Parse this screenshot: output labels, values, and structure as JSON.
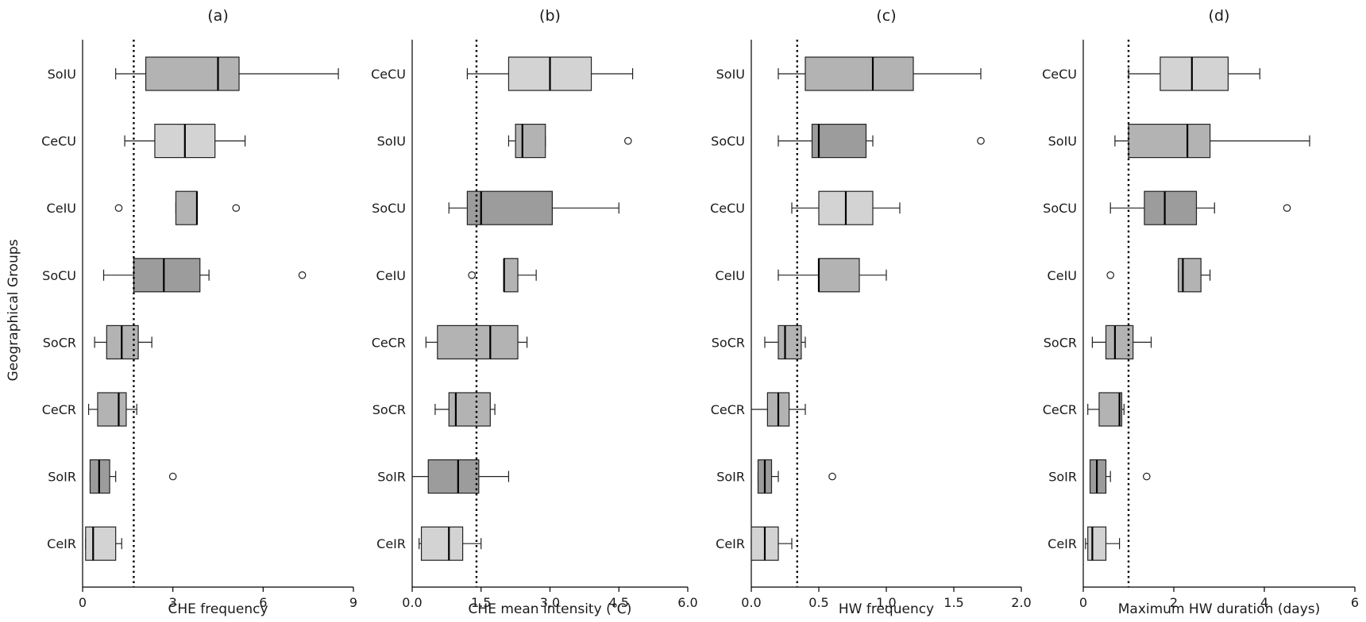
{
  "figure": {
    "ylabel": "Geographical Groups",
    "colors": {
      "light": "#d3d3d3",
      "medium": "#b3b3b3",
      "dark": "#9c9c9c",
      "line": "#222222"
    }
  },
  "chart_data": [
    {
      "type": "boxplot",
      "title": "(a)",
      "xlabel": "CHE frequency",
      "xlim": [
        0,
        9
      ],
      "xticks": [
        0,
        3,
        6,
        9
      ],
      "xtick_labels": [
        "0",
        "3",
        "6",
        "9"
      ],
      "reference_line": 1.7,
      "categories": [
        "SoIU",
        "CeCU",
        "CeIU",
        "SoCU",
        "SoCR",
        "CeCR",
        "SoIR",
        "CeIR"
      ],
      "boxes": [
        {
          "group": "SoIU",
          "whislo": 1.1,
          "q1": 2.1,
          "med": 4.5,
          "q3": 5.2,
          "whishi": 8.5,
          "fliers": [],
          "shade": "medium"
        },
        {
          "group": "CeCU",
          "whislo": 1.4,
          "q1": 2.4,
          "med": 3.4,
          "q3": 4.4,
          "whishi": 5.4,
          "fliers": [],
          "shade": "light"
        },
        {
          "group": "CeIU",
          "whislo": 3.1,
          "q1": 3.1,
          "med": 3.8,
          "q3": 3.8,
          "whishi": 3.8,
          "fliers": [
            1.2,
            5.1
          ],
          "shade": "medium"
        },
        {
          "group": "SoCU",
          "whislo": 0.7,
          "q1": 1.7,
          "med": 2.7,
          "q3": 3.9,
          "whishi": 4.2,
          "fliers": [
            7.3
          ],
          "shade": "dark"
        },
        {
          "group": "SoCR",
          "whislo": 0.4,
          "q1": 0.8,
          "med": 1.3,
          "q3": 1.85,
          "whishi": 2.3,
          "fliers": [],
          "shade": "medium"
        },
        {
          "group": "CeCR",
          "whislo": 0.2,
          "q1": 0.5,
          "med": 1.2,
          "q3": 1.45,
          "whishi": 1.8,
          "fliers": [],
          "shade": "medium"
        },
        {
          "group": "SoIR",
          "whislo": 0.25,
          "q1": 0.25,
          "med": 0.55,
          "q3": 0.9,
          "whishi": 1.1,
          "fliers": [
            3.0
          ],
          "shade": "dark"
        },
        {
          "group": "CeIR",
          "whislo": 0.1,
          "q1": 0.1,
          "med": 0.35,
          "q3": 1.1,
          "whishi": 1.3,
          "fliers": [],
          "shade": "light"
        }
      ]
    },
    {
      "type": "boxplot",
      "title": "(b)",
      "xlabel": "CHE mean intensity (℃)",
      "xlim": [
        0,
        6
      ],
      "xticks": [
        0,
        1.5,
        3,
        4.5,
        6
      ],
      "xtick_labels": [
        "0.0",
        "1.5",
        "3.0",
        "4.5",
        "6.0"
      ],
      "reference_line": 1.4,
      "categories": [
        "CeCU",
        "SoIU",
        "SoCU",
        "CeIU",
        "CeCR",
        "SoCR",
        "SoIR",
        "CeIR"
      ],
      "boxes": [
        {
          "group": "CeCU",
          "whislo": 1.2,
          "q1": 2.1,
          "med": 3.0,
          "q3": 3.9,
          "whishi": 4.8,
          "fliers": [],
          "shade": "light"
        },
        {
          "group": "SoIU",
          "whislo": 2.1,
          "q1": 2.25,
          "med": 2.4,
          "q3": 2.9,
          "whishi": 2.9,
          "fliers": [
            4.7
          ],
          "shade": "medium"
        },
        {
          "group": "SoCU",
          "whislo": 0.8,
          "q1": 1.2,
          "med": 1.5,
          "q3": 3.05,
          "whishi": 4.5,
          "fliers": [],
          "shade": "dark"
        },
        {
          "group": "CeIU",
          "whislo": 2.0,
          "q1": 2.0,
          "med": 2.0,
          "q3": 2.3,
          "whishi": 2.7,
          "fliers": [
            1.3
          ],
          "shade": "medium"
        },
        {
          "group": "CeCR",
          "whislo": 0.3,
          "q1": 0.55,
          "med": 1.7,
          "q3": 2.3,
          "whishi": 2.5,
          "fliers": [],
          "shade": "medium"
        },
        {
          "group": "SoCR",
          "whislo": 0.5,
          "q1": 0.8,
          "med": 0.95,
          "q3": 1.7,
          "whishi": 1.8,
          "fliers": [],
          "shade": "medium"
        },
        {
          "group": "SoIR",
          "whislo": 0.0,
          "q1": 0.35,
          "med": 1.0,
          "q3": 1.45,
          "whishi": 2.1,
          "fliers": [],
          "shade": "dark"
        },
        {
          "group": "CeIR",
          "whislo": 0.15,
          "q1": 0.2,
          "med": 0.8,
          "q3": 1.1,
          "whishi": 1.5,
          "fliers": [],
          "shade": "light"
        }
      ]
    },
    {
      "type": "boxplot",
      "title": "(c)",
      "xlabel": "HW frequency",
      "xlim": [
        0,
        2
      ],
      "xticks": [
        0,
        0.5,
        1,
        1.5,
        2
      ],
      "xtick_labels": [
        "0.0",
        "0.5",
        "1.0",
        "1.5",
        "2.0"
      ],
      "reference_line": 0.34,
      "categories": [
        "SoIU",
        "SoCU",
        "CeCU",
        "CeIU",
        "SoCR",
        "CeCR",
        "SoIR",
        "CeIR"
      ],
      "boxes": [
        {
          "group": "SoIU",
          "whislo": 0.2,
          "q1": 0.4,
          "med": 0.9,
          "q3": 1.2,
          "whishi": 1.7,
          "fliers": [],
          "shade": "medium"
        },
        {
          "group": "SoCU",
          "whislo": 0.2,
          "q1": 0.45,
          "med": 0.5,
          "q3": 0.85,
          "whishi": 0.9,
          "fliers": [
            1.7
          ],
          "shade": "dark"
        },
        {
          "group": "CeCU",
          "whislo": 0.3,
          "q1": 0.5,
          "med": 0.7,
          "q3": 0.9,
          "whishi": 1.1,
          "fliers": [],
          "shade": "light"
        },
        {
          "group": "CeIU",
          "whislo": 0.2,
          "q1": 0.5,
          "med": 0.5,
          "q3": 0.8,
          "whishi": 1.0,
          "fliers": [],
          "shade": "medium"
        },
        {
          "group": "SoCR",
          "whislo": 0.1,
          "q1": 0.2,
          "med": 0.25,
          "q3": 0.37,
          "whishi": 0.4,
          "fliers": [],
          "shade": "medium"
        },
        {
          "group": "CeCR",
          "whislo": 0.0,
          "q1": 0.12,
          "med": 0.2,
          "q3": 0.28,
          "whishi": 0.4,
          "fliers": [],
          "shade": "medium"
        },
        {
          "group": "SoIR",
          "whislo": 0.05,
          "q1": 0.05,
          "med": 0.1,
          "q3": 0.15,
          "whishi": 0.2,
          "fliers": [
            0.6
          ],
          "shade": "dark"
        },
        {
          "group": "CeIR",
          "whislo": 0.0,
          "q1": 0.0,
          "med": 0.1,
          "q3": 0.2,
          "whishi": 0.3,
          "fliers": [],
          "shade": "light"
        }
      ]
    },
    {
      "type": "boxplot",
      "title": "(d)",
      "xlabel": "Maximum HW duration (days)",
      "xlim": [
        0,
        6
      ],
      "xticks": [
        0,
        2,
        4,
        6
      ],
      "xtick_labels": [
        "0",
        "2",
        "4",
        "6"
      ],
      "reference_line": 1.0,
      "categories": [
        "CeCU",
        "SoIU",
        "SoCU",
        "CeIU",
        "SoCR",
        "CeCR",
        "SoIR",
        "CeIR"
      ],
      "boxes": [
        {
          "group": "CeCU",
          "whislo": 1.0,
          "q1": 1.7,
          "med": 2.4,
          "q3": 3.2,
          "whishi": 3.9,
          "fliers": [],
          "shade": "light"
        },
        {
          "group": "SoIU",
          "whislo": 0.7,
          "q1": 1.0,
          "med": 2.3,
          "q3": 2.8,
          "whishi": 5.0,
          "fliers": [],
          "shade": "medium"
        },
        {
          "group": "SoCU",
          "whislo": 0.6,
          "q1": 1.35,
          "med": 1.8,
          "q3": 2.5,
          "whishi": 2.9,
          "fliers": [
            4.5
          ],
          "shade": "dark"
        },
        {
          "group": "CeIU",
          "whislo": 2.1,
          "q1": 2.1,
          "med": 2.2,
          "q3": 2.6,
          "whishi": 2.8,
          "fliers": [
            0.6
          ],
          "shade": "medium"
        },
        {
          "group": "SoCR",
          "whislo": 0.2,
          "q1": 0.5,
          "med": 0.7,
          "q3": 1.1,
          "whishi": 1.5,
          "fliers": [],
          "shade": "medium"
        },
        {
          "group": "CeCR",
          "whislo": 0.1,
          "q1": 0.35,
          "med": 0.8,
          "q3": 0.85,
          "whishi": 0.9,
          "fliers": [],
          "shade": "medium"
        },
        {
          "group": "SoIR",
          "whislo": 0.15,
          "q1": 0.15,
          "med": 0.3,
          "q3": 0.5,
          "whishi": 0.6,
          "fliers": [
            1.4
          ],
          "shade": "dark"
        },
        {
          "group": "CeIR",
          "whislo": 0.05,
          "q1": 0.1,
          "med": 0.2,
          "q3": 0.5,
          "whishi": 0.8,
          "fliers": [],
          "shade": "light"
        }
      ]
    }
  ]
}
